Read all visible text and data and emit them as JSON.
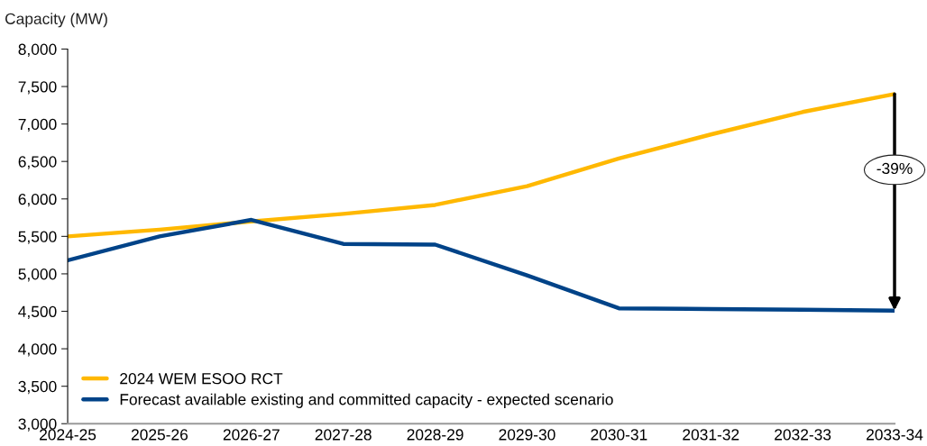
{
  "chart_data": {
    "type": "line",
    "ylabel": "Capacity (MW)",
    "categories": [
      "2024-25",
      "2025-26",
      "2026-27",
      "2027-28",
      "2028-29",
      "2029-30",
      "2030-31",
      "2031-32",
      "2032-33",
      "2033-34"
    ],
    "series": [
      {
        "name": "2024 WEM ESOO RCT",
        "color": "#ffb800",
        "values": [
          5500,
          5590,
          5700,
          5800,
          5920,
          6170,
          6540,
          6860,
          7160,
          7400
        ]
      },
      {
        "name": "Forecast available existing and committed capacity - expected scenario",
        "color": "#004388",
        "values": [
          5180,
          5500,
          5720,
          5400,
          5390,
          4980,
          4540,
          4530,
          4520,
          4510
        ]
      }
    ],
    "ylim": [
      3000,
      8000
    ],
    "yticks": [
      {
        "value": 3000,
        "label": "3,000"
      },
      {
        "value": 3500,
        "label": "3,500"
      },
      {
        "value": 4000,
        "label": "4,000"
      },
      {
        "value": 4500,
        "label": "4,500"
      },
      {
        "value": 5000,
        "label": "5,000"
      },
      {
        "value": 5500,
        "label": "5,500"
      },
      {
        "value": 6000,
        "label": "6,000"
      },
      {
        "value": 6500,
        "label": "6,500"
      },
      {
        "value": 7000,
        "label": "7,000"
      },
      {
        "value": 7500,
        "label": "7,500"
      },
      {
        "value": 8000,
        "label": "8,000"
      }
    ],
    "annotations": [
      "-39%"
    ],
    "legend": "bottom left",
    "grid": false,
    "marker": "none",
    "line_style": "solid"
  }
}
